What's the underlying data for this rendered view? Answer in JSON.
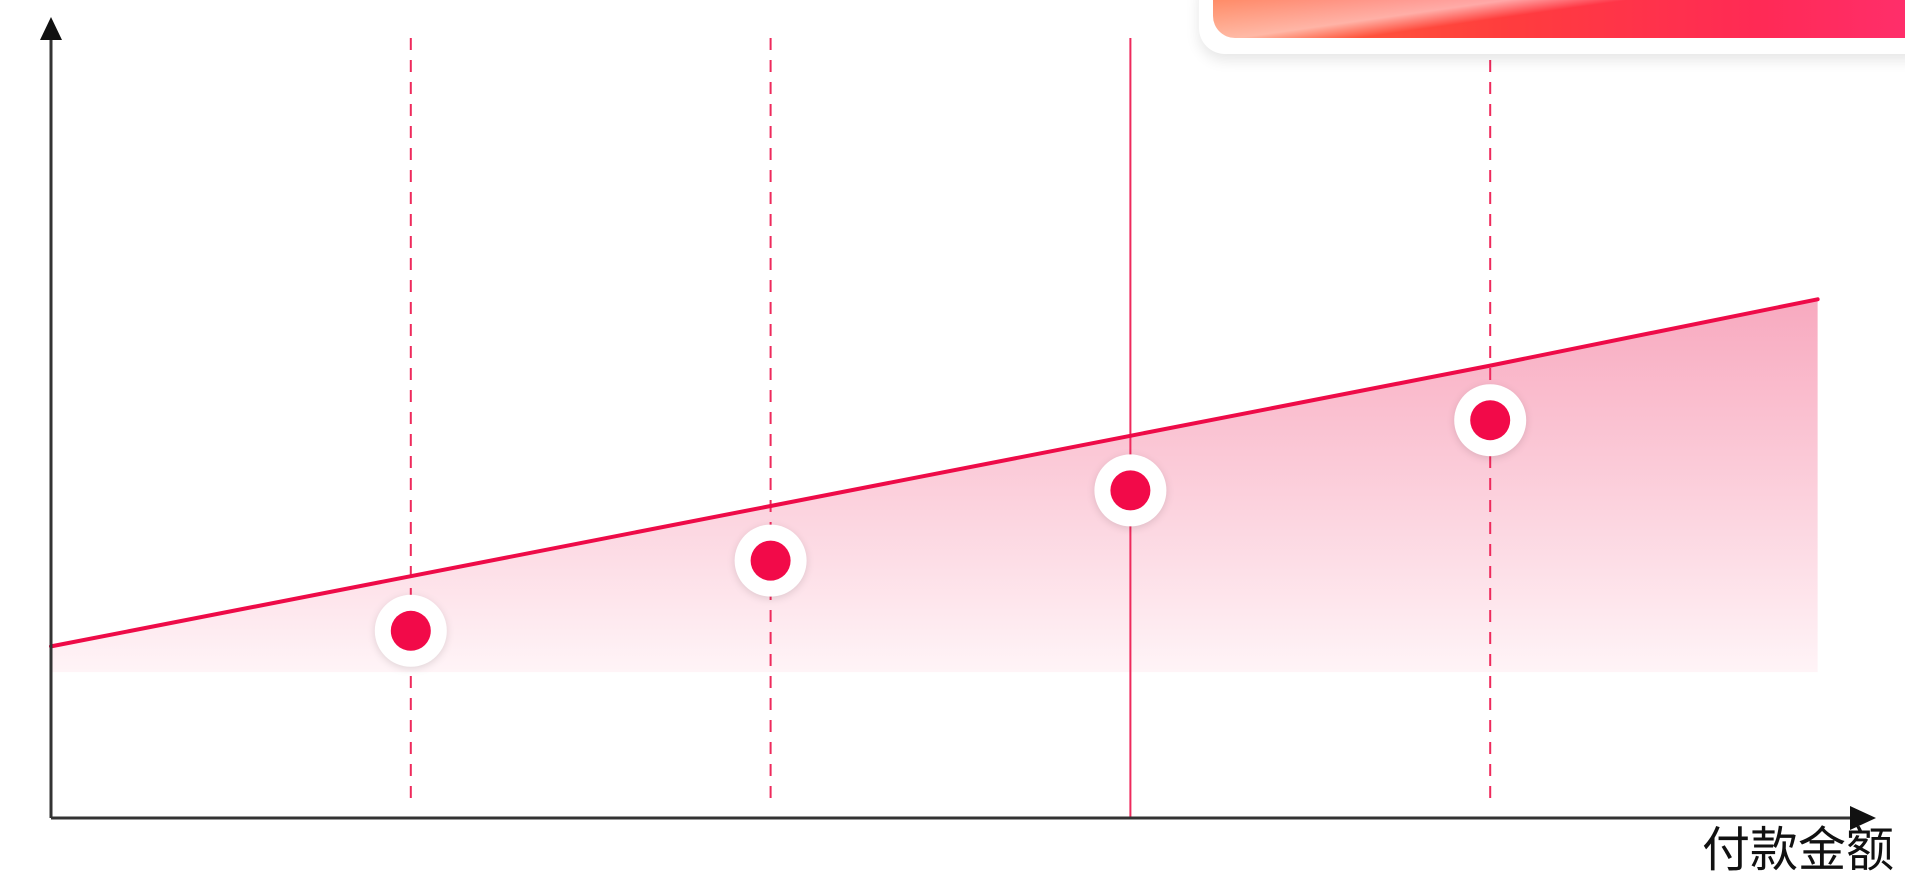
{
  "chart_data": {
    "type": "area",
    "title": "",
    "xlabel": "付款金额",
    "ylabel": "",
    "grid": false,
    "xlim": [
      0,
      5
    ],
    "ylim": [
      0,
      10
    ],
    "baseline": 1.87,
    "markers": [
      {
        "x": 1,
        "y": 2.4,
        "guide": "dashed"
      },
      {
        "x": 2,
        "y": 3.3,
        "guide": "dashed"
      },
      {
        "x": 3,
        "y": 4.2,
        "guide": "solid"
      },
      {
        "x": 4,
        "y": 5.1,
        "guide": "dashed"
      }
    ],
    "series": [
      {
        "x": [
          0,
          1,
          2,
          3,
          4,
          4.91
        ],
        "y": [
          2.2,
          3.1,
          4.0,
          4.9,
          5.8,
          6.65
        ]
      }
    ]
  },
  "colors": {
    "line": "#ee0b48",
    "marker": "#f20a49",
    "marker_ring": "#ffffff",
    "guide": "#ee2a5c",
    "area_top": "#f8a9bf",
    "area_bottom": "#fff4f7",
    "axis": "#333333"
  }
}
